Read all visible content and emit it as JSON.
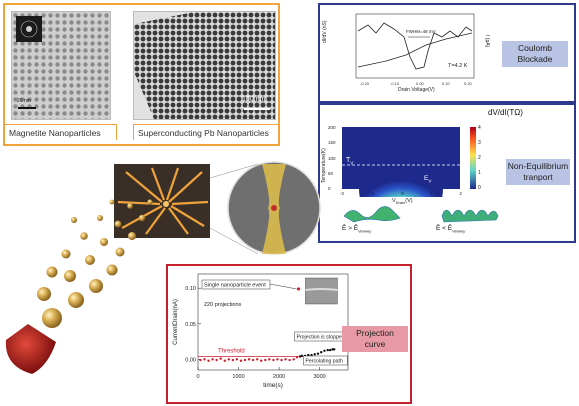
{
  "nanoparticles": {
    "magnetite_label": "Magnetite Nanoparticles",
    "pb_label": "Superconducting Pb Nanoparticles",
    "scale_left": "20 nm",
    "scale_right": "100 nm"
  },
  "coulomb": {
    "title": "Coulomb\nBlockade",
    "xlabel": "Drain Voltage(V)",
    "ylabel_left": "dI/dV (nS)",
    "ylabel_right": "I (pA)",
    "annotation_fwhm": "FWHM=48 mV",
    "annotation_temp": "T=4.2 K"
  },
  "noneq": {
    "title": "Non-Equilibrium\ntranport",
    "colorbar_label": "dV/dI(TΩ)",
    "colorbar_ticks": [
      "4",
      "3",
      "2",
      "1",
      "0"
    ],
    "ylabel": "Temperature(K)",
    "xlabel": "V",
    "xlabel_sub": "Drain",
    "xlabel_unit": "(V)",
    "yticks": [
      "200",
      "150",
      "100",
      "50",
      "0"
    ],
    "xticks": [
      "-2",
      "-1",
      "0",
      "1",
      "2"
    ],
    "tv_label": "T",
    "tv_sub": "V",
    "ev_label": "E",
    "ev_sub": "V",
    "left_cond": "Ē > Ē",
    "left_sub": "Verwey",
    "right_cond": "Ē < Ē",
    "right_sub": "Verwey"
  },
  "projection": {
    "title": "Projection\ncurve",
    "single_event": "Single nanoparticle event",
    "count": "220 projections",
    "threshold": "Threshold",
    "stopped": "Projection is stopped",
    "percolating": "Percolating path",
    "chart_data": {
      "type": "scatter",
      "xlabel": "time(s)",
      "ylabel": "Current",
      "ylabel_sub": "Drain",
      "ylabel_unit": "(nA)",
      "xticks": [
        0,
        1000,
        2000,
        3000
      ],
      "yticks": [
        0.0,
        0.05,
        0.1
      ],
      "xlim": [
        0,
        3700
      ],
      "ylim": [
        -0.015,
        0.12
      ],
      "threshold_value": 0.004,
      "series": [
        {
          "x": [
            60,
            160,
            260,
            360,
            460,
            560,
            660,
            760,
            860,
            960,
            1060,
            1160,
            1260,
            1360,
            1460,
            1560,
            1660,
            1760,
            1860,
            1960,
            2060,
            2160,
            2260,
            2360,
            2440,
            2520,
            2560,
            2640,
            2720,
            2800,
            2880,
            2960,
            3040,
            3120,
            3200,
            3260,
            3320,
            3360
          ],
          "y": [
            -0.001,
            0.0,
            -0.002,
            0.0,
            -0.001,
            0.001,
            -0.002,
            0.0,
            -0.001,
            0.0,
            -0.002,
            -0.001,
            0.0,
            -0.001,
            0.0,
            -0.002,
            -0.001,
            0.0,
            -0.001,
            0.0,
            -0.001,
            0.0,
            -0.001,
            0.0,
            0.003,
            0.004,
            0.005,
            0.005,
            0.006,
            0.006,
            0.007,
            0.008,
            0.01,
            0.012,
            0.013,
            0.013,
            0.014,
            0.014
          ],
          "color": "#d01e2c"
        }
      ],
      "event_point": {
        "x": 2480,
        "y": 0.099
      }
    }
  }
}
